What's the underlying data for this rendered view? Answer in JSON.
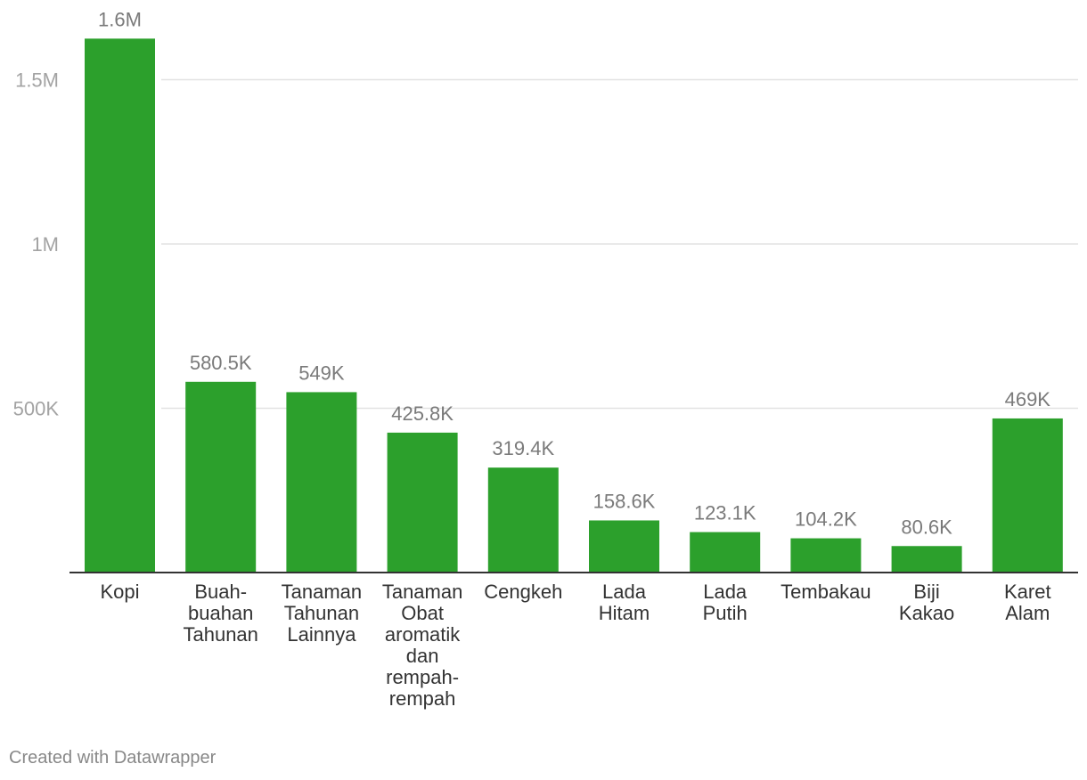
{
  "chart_data": {
    "type": "bar",
    "title": "",
    "xlabel": "",
    "ylabel": "",
    "ylim": [
      0,
      1700000
    ],
    "grid": true,
    "color": "#2ca02c",
    "y_ticks": [
      {
        "value": 1500000,
        "label": "1.5M"
      },
      {
        "value": 1000000,
        "label": "1M"
      },
      {
        "value": 500000,
        "label": "500K"
      }
    ],
    "categories": [
      [
        "Kopi"
      ],
      [
        "Buah-",
        "buahan",
        "Tahunan"
      ],
      [
        "Tanaman",
        "Tahunan",
        "Lainnya"
      ],
      [
        "Tanaman",
        "Obat",
        "aromatik",
        "dan",
        "rempah-",
        "rempah"
      ],
      [
        "Cengkeh"
      ],
      [
        "Lada",
        "Hitam"
      ],
      [
        "Lada",
        "Putih"
      ],
      [
        "Tembakau"
      ],
      [
        "Biji",
        "Kakao"
      ],
      [
        "Karet",
        "Alam"
      ]
    ],
    "values": [
      1625000,
      580500,
      549000,
      425800,
      319400,
      158600,
      123100,
      104200,
      80600,
      469000
    ],
    "value_labels": [
      "1.6M",
      "580.5K",
      "549K",
      "425.8K",
      "319.4K",
      "158.6K",
      "123.1K",
      "104.2K",
      "80.6K",
      "469K"
    ]
  },
  "footer": {
    "credit": "Created with Datawrapper"
  }
}
